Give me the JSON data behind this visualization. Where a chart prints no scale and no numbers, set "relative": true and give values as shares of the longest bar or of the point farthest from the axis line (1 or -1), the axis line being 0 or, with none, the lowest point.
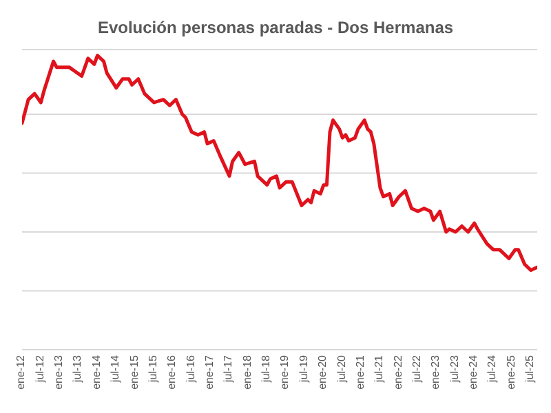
{
  "chart_data": {
    "type": "line",
    "title": "Evolución personas paradas - Dos Hermanas",
    "relative": true,
    "grid": "y",
    "marker": "none",
    "line_style": "solid",
    "xlim": [
      "2012-01",
      "2025-09"
    ],
    "xticks": [
      {
        "value": "2012-01",
        "label": "ene-12"
      },
      {
        "value": "2012-07",
        "label": "jul-12"
      },
      {
        "value": "2013-01",
        "label": "ene-13"
      },
      {
        "value": "2013-07",
        "label": "jul-13"
      },
      {
        "value": "2014-01",
        "label": "ene-14"
      },
      {
        "value": "2014-07",
        "label": "jul-14"
      },
      {
        "value": "2015-01",
        "label": "ene-15"
      },
      {
        "value": "2015-07",
        "label": "jul-15"
      },
      {
        "value": "2016-01",
        "label": "ene-16"
      },
      {
        "value": "2016-07",
        "label": "jul-16"
      },
      {
        "value": "2017-01",
        "label": "ene-17"
      },
      {
        "value": "2017-07",
        "label": "jul-17"
      },
      {
        "value": "2018-01",
        "label": "ene-18"
      },
      {
        "value": "2018-07",
        "label": "jul-18"
      },
      {
        "value": "2019-01",
        "label": "ene-19"
      },
      {
        "value": "2019-07",
        "label": "jul-19"
      },
      {
        "value": "2020-01",
        "label": "ene-20"
      },
      {
        "value": "2020-07",
        "label": "jul-20"
      },
      {
        "value": "2021-01",
        "label": "ene-21"
      },
      {
        "value": "2021-07",
        "label": "jul-21"
      },
      {
        "value": "2022-01",
        "label": "ene-22"
      },
      {
        "value": "2022-07",
        "label": "jul-22"
      },
      {
        "value": "2023-01",
        "label": "ene-23"
      },
      {
        "value": "2023-07",
        "label": "jul-23"
      },
      {
        "value": "2024-01",
        "label": "ene-24"
      },
      {
        "value": "2024-07",
        "label": "jul-24"
      },
      {
        "value": "2025-01",
        "label": "ene-25"
      },
      {
        "value": "2025-07",
        "label": "jul-25"
      }
    ],
    "x": [
      "2012-01",
      "2012-03",
      "2012-05",
      "2012-07",
      "2012-08",
      "2012-11",
      "2012-12",
      "2013-04",
      "2013-08",
      "2013-10",
      "2013-12",
      "2014-01",
      "2014-03",
      "2014-04",
      "2014-07",
      "2014-09",
      "2014-11",
      "2014-12",
      "2015-02",
      "2015-04",
      "2015-07",
      "2015-10",
      "2015-12",
      "2016-02",
      "2016-04",
      "2016-05",
      "2016-07",
      "2016-09",
      "2016-11",
      "2016-12",
      "2017-02",
      "2017-04",
      "2017-07",
      "2017-08",
      "2017-10",
      "2017-12",
      "2018-03",
      "2018-04",
      "2018-07",
      "2018-08",
      "2018-10",
      "2018-11",
      "2019-01",
      "2019-03",
      "2019-06",
      "2019-08",
      "2019-09",
      "2019-10",
      "2019-12",
      "2020-01",
      "2020-02",
      "2020-03",
      "2020-04",
      "2020-06",
      "2020-07",
      "2020-08",
      "2020-09",
      "2020-11",
      "2020-12",
      "2021-02",
      "2021-03",
      "2021-04",
      "2021-05",
      "2021-07",
      "2021-08",
      "2021-10",
      "2021-11",
      "2022-01",
      "2022-03",
      "2022-05",
      "2022-07",
      "2022-09",
      "2022-11",
      "2022-12",
      "2023-02",
      "2023-04",
      "2023-05",
      "2023-07",
      "2023-09",
      "2023-11",
      "2024-01",
      "2024-02",
      "2024-05",
      "2024-07",
      "2024-09",
      "2024-12",
      "2025-02",
      "2025-03",
      "2025-05",
      "2025-07",
      "2025-09"
    ],
    "series": [
      {
        "color": "#e0121c",
        "values": [
          0.77,
          0.85,
          0.87,
          0.84,
          0.88,
          0.98,
          0.96,
          0.96,
          0.93,
          0.99,
          0.97,
          1,
          0.98,
          0.94,
          0.89,
          0.92,
          0.92,
          0.9,
          0.92,
          0.87,
          0.84,
          0.85,
          0.83,
          0.85,
          0.8,
          0.79,
          0.74,
          0.73,
          0.74,
          0.7,
          0.71,
          0.66,
          0.59,
          0.64,
          0.67,
          0.63,
          0.64,
          0.59,
          0.56,
          0.58,
          0.59,
          0.55,
          0.57,
          0.57,
          0.49,
          0.51,
          0.5,
          0.54,
          0.53,
          0.56,
          0.56,
          0.74,
          0.78,
          0.75,
          0.72,
          0.73,
          0.71,
          0.72,
          0.75,
          0.78,
          0.75,
          0.74,
          0.7,
          0.55,
          0.52,
          0.53,
          0.49,
          0.52,
          0.54,
          0.48,
          0.47,
          0.48,
          0.47,
          0.44,
          0.47,
          0.4,
          0.41,
          0.4,
          0.42,
          0.4,
          0.43,
          0.41,
          0.36,
          0.34,
          0.34,
          0.31,
          0.34,
          0.34,
          0.29,
          0.27,
          0.28
        ]
      }
    ]
  }
}
